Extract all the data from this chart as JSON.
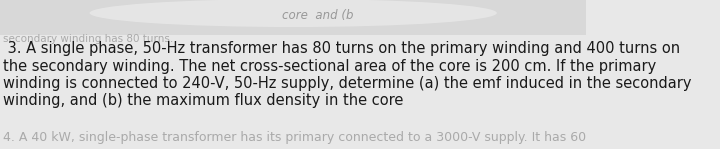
{
  "background_color": "#e8e8e8",
  "top_zone_color": "#d0d0d0",
  "main_text_lines": [
    " 3. A single phase, 50-Hz transformer has 80 turns on the primary winding and 400 turns on",
    "the secondary winding. The net cross-sectional area of the core is 200 cm. If the primary",
    "winding is connected to 240-V, 50-Hz supply, determine (a) the emf induced in the secondary",
    "winding, and (b) the maximum flux density in the core"
  ],
  "top_partial_text": "core  and (b",
  "bottom_partial_text": "secondary winding has 80 turns.",
  "bottom_fade_text": "4. A 40 kW, single-phase transformer has its primary connected to a 3000-V supply. It has 60",
  "font_size": 10.5,
  "text_color": "#1a1a1a",
  "gray_text_color": "#888888",
  "bottom_gray_color": "#aaaaaa"
}
